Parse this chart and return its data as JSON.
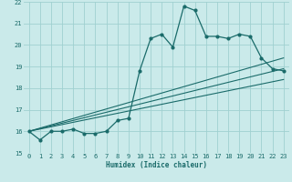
{
  "xlabel": "Humidex (Indice chaleur)",
  "ylabel": "",
  "background_color": "#caeaea",
  "grid_color": "#a0d0d0",
  "line_color": "#1a6b6a",
  "xlim": [
    -0.5,
    23.5
  ],
  "ylim": [
    15,
    22
  ],
  "xticks": [
    0,
    1,
    2,
    3,
    4,
    5,
    6,
    7,
    8,
    9,
    10,
    11,
    12,
    13,
    14,
    15,
    16,
    17,
    18,
    19,
    20,
    21,
    22,
    23
  ],
  "yticks": [
    15,
    16,
    17,
    18,
    19,
    20,
    21,
    22
  ],
  "series1_x": [
    0,
    1,
    2,
    3,
    4,
    5,
    6,
    7,
    8,
    9,
    10,
    11,
    12,
    13,
    14,
    15,
    16,
    17,
    18,
    19,
    20,
    21,
    22,
    23
  ],
  "series1_y": [
    16.0,
    15.6,
    16.0,
    16.0,
    16.1,
    15.9,
    15.9,
    16.0,
    16.5,
    16.6,
    18.8,
    20.3,
    20.5,
    19.9,
    21.8,
    21.6,
    20.4,
    20.4,
    20.3,
    20.5,
    20.4,
    19.4,
    18.9,
    18.8
  ],
  "series2_x": [
    0,
    23
  ],
  "series2_y": [
    16.0,
    18.4
  ],
  "series3_x": [
    0,
    23
  ],
  "series3_y": [
    16.0,
    18.9
  ],
  "series4_x": [
    0,
    23
  ],
  "series4_y": [
    16.0,
    19.4
  ]
}
